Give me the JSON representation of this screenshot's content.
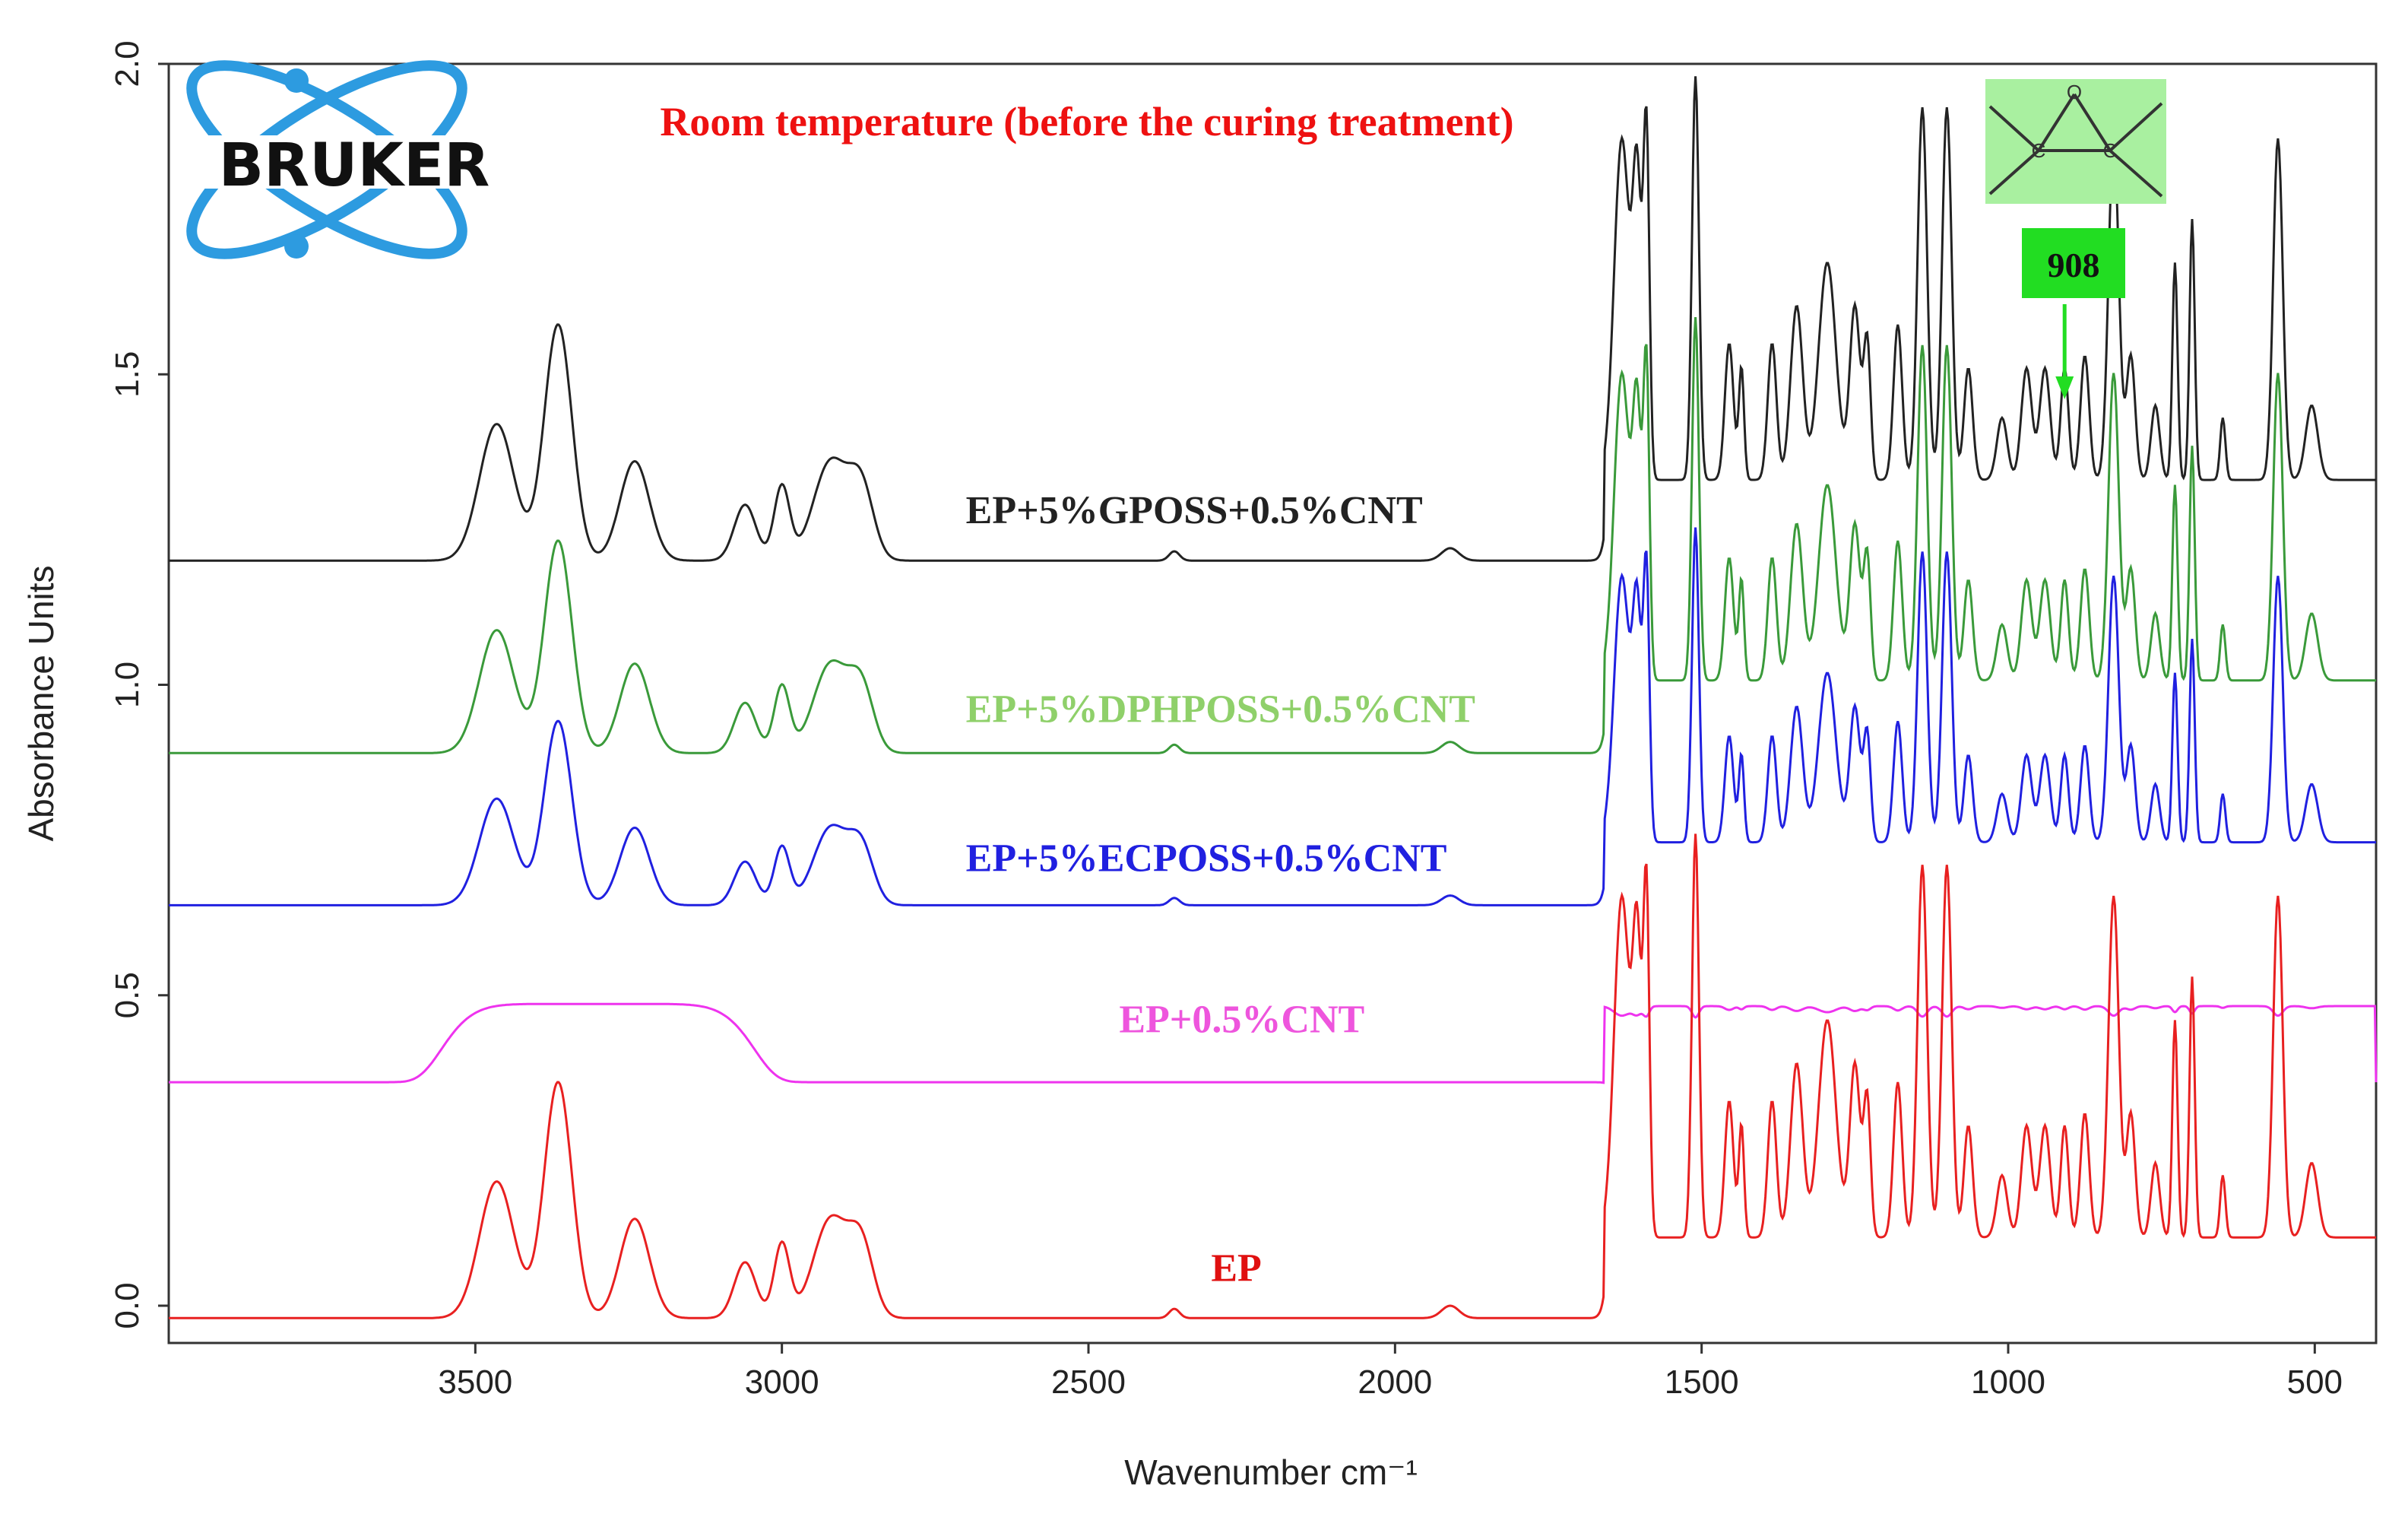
{
  "chart_data": {
    "type": "line",
    "title": "Room temperature (before the curing treatment)",
    "xlabel": "Wavenumber cm⁻¹",
    "ylabel": "Absorbance Units",
    "xlim": [
      4000,
      400
    ],
    "ylim": [
      -0.06,
      2.0
    ],
    "x_ticks": [
      3500,
      3000,
      2500,
      2000,
      1500,
      1000,
      500
    ],
    "x_tick_labels": [
      "3500",
      "3000",
      "2500",
      "2000",
      "1500",
      "1000",
      "500"
    ],
    "y_ticks": [
      0.0,
      0.5,
      1.0,
      1.5,
      2.0
    ],
    "y_tick_labels": [
      "0.0",
      "0.5",
      "1.0",
      "1.5",
      "2.0"
    ],
    "grid": false,
    "logo_text": "BRUKER",
    "annotation": {
      "label": "908",
      "wavenumber": 908,
      "molecule_atoms": [
        "O",
        "C",
        "C"
      ]
    },
    "series": [
      {
        "name": "EP+5%GPOSS+0.5%CNT",
        "color": "#222222",
        "baseline": 1.2,
        "scale": 1.0,
        "label_anchor": [
          2700,
          1.26
        ]
      },
      {
        "name": "EP+5%DPHPOSS+0.5%CNT",
        "color": "#3a9a3a",
        "label_color": "#8fd06a",
        "baseline": 0.89,
        "scale": 0.9,
        "label_anchor": [
          2700,
          0.94
        ]
      },
      {
        "name": "EP+5%ECPOSS+0.5%CNT",
        "color": "#2020e0",
        "baseline": 0.645,
        "scale": 0.78,
        "label_anchor": [
          2700,
          0.7
        ]
      },
      {
        "name": "EP+0.5%CNT",
        "color": "#ee33ee",
        "label_color": "#ee55dd",
        "baseline": 0.36,
        "scale": 0.35,
        "label_anchor": [
          2450,
          0.44
        ]
      },
      {
        "name": "EP",
        "color": "#e82020",
        "label_color": "#e01010",
        "baseline": -0.02,
        "scale": 1.0,
        "label_anchor": [
          2300,
          0.04
        ]
      }
    ]
  }
}
